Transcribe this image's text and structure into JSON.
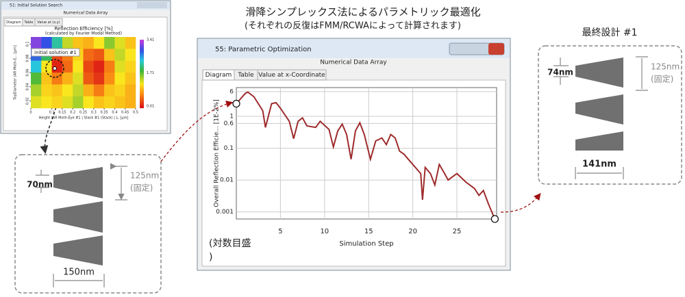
{
  "heading": {
    "title": "滑降シンプレックス法によるパラメトリック最適化",
    "subtitle": "(それぞれの反復はFMM/RCWAによって計算されます)"
  },
  "initial_window": {
    "title": "51: Initial Solution Search",
    "subtitle": "Numerical Data Array",
    "tabs": [
      "Diagram",
      "Table",
      "Value at (x,y)"
    ]
  },
  "optimization_window": {
    "title": "55: Parametric Optimization",
    "subtitle": "Numerical Data Array",
    "tabs": [
      "Diagram",
      "Table",
      "Value at x-Coordinate"
    ],
    "note": [
      "(対数目盛",
      ")"
    ]
  },
  "initial_design": {
    "top": "70nm",
    "height": "125nm",
    "fixed": "(固定)",
    "bottom": "150nm"
  },
  "final_design": {
    "title": "最終設計 #1",
    "top": "74nm",
    "height": "125nm",
    "fixed": "(固定)",
    "bottom": "141nm"
  },
  "chart_data": [
    {
      "type": "heatmap",
      "title": "Reflection Efficiency [%]",
      "subtitle": "(calculated by Fourier Modal Method)",
      "x_label": "Height (AR Moth-Eye #1 | Stack #1 (Stack) | L. [µm]",
      "y_label": "TopDiameter (AR Moth-E... [µm]",
      "annotation": "initial solution #1",
      "xlim": [
        0,
        0.5
      ],
      "xticks": [
        0,
        0.1,
        0.15,
        0.2,
        0.25,
        0.3,
        0.35,
        0.4,
        0.45,
        0.5
      ],
      "ylim": [
        0.01,
        0.11
      ],
      "yticks": [
        0.02,
        0.04,
        0.06,
        0.08,
        0.1
      ],
      "zlim": [
        0.01,
        3.41
      ],
      "zticks": [
        3.41,
        1.71,
        0.01
      ],
      "values": [
        [
          3.2,
          2.9,
          2.2,
          1.4,
          1.0,
          0.9,
          1.2,
          1.6,
          1.3,
          1.0
        ],
        [
          2.8,
          2.0,
          0.3,
          0.6,
          1.1,
          0.5,
          0.4,
          1.0,
          1.4,
          1.2
        ],
        [
          2.4,
          1.2,
          0.1,
          0.5,
          1.2,
          0.3,
          0.1,
          0.6,
          1.3,
          1.1
        ],
        [
          1.8,
          1.0,
          0.6,
          0.9,
          1.3,
          0.4,
          0.2,
          0.7,
          1.2,
          1.0
        ],
        [
          1.5,
          1.1,
          1.0,
          1.2,
          1.4,
          0.9,
          0.6,
          1.0,
          1.1,
          0.9
        ],
        [
          1.3,
          1.2,
          1.1,
          1.3,
          1.5,
          1.2,
          1.0,
          1.1,
          1.0,
          0.9
        ]
      ]
    },
    {
      "type": "line",
      "x_label": "Simulation Step",
      "y_label": "Overall Reflection Efficie... [1E-2%]",
      "xlim": [
        0,
        29.5
      ],
      "xticks": [
        5,
        10,
        15,
        20,
        25
      ],
      "ylim": [
        0.0006,
        8
      ],
      "yticks": [
        6,
        1,
        0.6,
        0.1,
        0.01,
        0.001
      ],
      "log_y": true,
      "grid": true,
      "x": [
        0,
        1,
        1.3,
        2,
        3,
        3.3,
        4,
        4.5,
        5,
        6,
        6.5,
        7,
        7.5,
        8,
        9,
        9.5,
        10.5,
        11,
        11.5,
        12,
        12.5,
        13,
        13.5,
        14,
        14.5,
        15.2,
        15.8,
        16.5,
        17,
        17.5,
        18,
        18.5,
        19,
        20,
        20.9,
        21.1,
        21.4,
        22,
        22.5,
        23,
        23.5,
        24,
        25,
        26,
        27,
        27.5,
        28,
        28.6,
        29.3
      ],
      "series": [
        {
          "name": "Overall Reflection Efficiency",
          "color": "#9e2a2b",
          "values": [
            2.5,
            5.2,
            5.8,
            4.1,
            1.5,
            0.45,
            2.5,
            2.7,
            1.8,
            0.7,
            0.2,
            0.7,
            0.9,
            0.5,
            0.45,
            0.7,
            0.39,
            0.11,
            0.35,
            0.57,
            0.27,
            0.045,
            0.35,
            0.63,
            0.27,
            0.045,
            0.17,
            0.21,
            0.13,
            0.27,
            0.21,
            0.081,
            0.065,
            0.031,
            0.016,
            0.0024,
            0.025,
            0.016,
            0.007,
            0.031,
            0.018,
            0.01,
            0.016,
            0.0087,
            0.0054,
            0.0033,
            0.0047,
            0.0017,
            0.0006
          ]
        }
      ]
    }
  ]
}
